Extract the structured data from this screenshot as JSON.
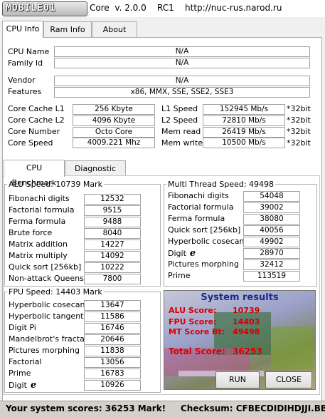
{
  "title": {
    "logo_text": "MOBILE01",
    "version_line": "Core  v. 2.0.0    RC1    http://nuc-rus.narod.ru"
  },
  "main_tabs": [
    "CPU Info",
    "Ram Info",
    "About"
  ],
  "cpu": {
    "cpu_name_label": "CPU Name",
    "cpu_name": "N/A",
    "family_label": "Family Id",
    "family": "N/A",
    "vendor_label": "Vendor",
    "vendor": "N/A",
    "features_label": "Features",
    "features": "x86, MMX, SSE, SSE2, SSE3",
    "cache_l1_label": "Core Cache L1",
    "cache_l1": "256 Kbyte",
    "cache_l2_label": "Core Cache L2",
    "cache_l2": "4096 Kbyte",
    "core_number_label": "Core Number",
    "core_number": "Octo Core",
    "core_speed_label": "Core Speed",
    "core_speed": "4009.221 Mhz",
    "l1_speed_label": "L1 Speed",
    "l1_speed": "152945 Mb/s",
    "l2_speed_label": "L2 Speed",
    "l2_speed": "72810 Mb/s",
    "mem_read_label": "Mem read",
    "mem_read": "26419 Mb/s",
    "mem_write_label": "Mem write",
    "mem_write": "10500 Mb/s",
    "bit_unit": "*32bit"
  },
  "sub_tabs": [
    "CPU Benchmark",
    "Diagnostic"
  ],
  "alu": {
    "title": "ALU Speed:  10739 Mark",
    "rows": [
      {
        "label": "Fibonachi digits",
        "value": "12532"
      },
      {
        "label": "Factorial formula",
        "value": "9515"
      },
      {
        "label": "Ferma formula",
        "value": "9488"
      },
      {
        "label": "Brute force",
        "value": "8040"
      },
      {
        "label": "Matrix addition",
        "value": "14227"
      },
      {
        "label": "Matrix multiply",
        "value": "14092"
      },
      {
        "label": "Quick sort [256kb]",
        "value": "10222"
      },
      {
        "label": "Non-attack Queens",
        "value": "7800"
      }
    ]
  },
  "mt": {
    "title": "Multi Thread Speed:  49498",
    "rows": [
      {
        "label": "Fibonachi digits",
        "value": "54048"
      },
      {
        "label": "Factorial formula",
        "value": "39002"
      },
      {
        "label": "Ferma formula",
        "value": "38080"
      },
      {
        "label": "Quick sort [256kb]",
        "value": "40056"
      },
      {
        "label": "Hyperbolic cosecant",
        "value": "49902"
      },
      {
        "label": "Digit",
        "value": "28970"
      },
      {
        "label": "Pictures morphing",
        "value": "32412"
      },
      {
        "label": "Prime",
        "value": "113519"
      }
    ]
  },
  "fpu": {
    "title": "FPU Speed:  14403 Mark",
    "rows": [
      {
        "label": "Hyperbolic cosecant",
        "value": "13647"
      },
      {
        "label": "Hyperbolic tangent",
        "value": "11586"
      },
      {
        "label": "Digit Pi",
        "value": "16746"
      },
      {
        "label": "Mandelbrot's fractal",
        "value": "20646"
      },
      {
        "label": "Pictures morphing",
        "value": "11838"
      },
      {
        "label": "Factorial",
        "value": "13056"
      },
      {
        "label": "Prime",
        "value": "16783"
      },
      {
        "label": "Digit",
        "value": "10926"
      }
    ]
  },
  "results": {
    "title": "System results",
    "alu_label": "ALU Score:",
    "alu_value": "10739",
    "fpu_label": "FPU Score:",
    "fpu_value": "14403",
    "mt_label": "MT Score Bt:",
    "mt_value": "49498",
    "total_label": "Total Score:",
    "total_value": "36253",
    "run_label": "RUN",
    "close_label": "CLOSE"
  },
  "status": {
    "scores_text": "Your system scores: 36253 Mark!",
    "checksum_text": "Checksum: CFBECDIDIHDJJI.BBA"
  },
  "icons": {
    "e_glyph": "e"
  },
  "colors": {
    "results_red": "#d40000",
    "results_title": "#1a2a8a"
  }
}
